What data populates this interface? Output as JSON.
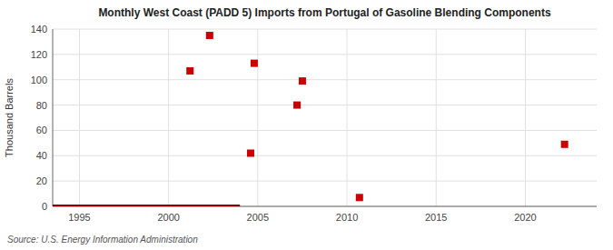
{
  "chart_data": {
    "type": "scatter",
    "title": "Monthly West Coast (PADD 5) Imports from Portugal of Gasoline Blending Components",
    "y_label": "Thousand Barrels",
    "annotation": "Source: U.S. Energy Information Administration",
    "xlim": [
      1993.5,
      2024
    ],
    "ylim": [
      0,
      140
    ],
    "xticks": [
      1995,
      2000,
      2005,
      2010,
      2015,
      2020
    ],
    "yticks": [
      0,
      20,
      40,
      60,
      80,
      100,
      120,
      140
    ],
    "grid": true,
    "series": [
      {
        "type": "scatter",
        "color": "#cc0000",
        "marker": "square",
        "x": [
          2001.2,
          2002.3,
          2004.6,
          2004.8,
          2007.2,
          2007.5,
          2010.7,
          2022.2
        ],
        "values": [
          107,
          135,
          42,
          113,
          80,
          99,
          7,
          49
        ]
      },
      {
        "type": "line",
        "color": "#8b0000",
        "line_style": "solid",
        "x": [
          1993.5,
          2004.0
        ],
        "values": [
          0,
          0
        ]
      }
    ]
  }
}
